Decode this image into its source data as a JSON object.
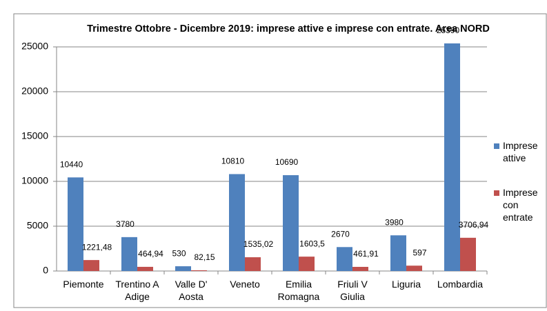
{
  "chart_data": {
    "type": "bar",
    "title": "Trimestre Ottobre - Dicembre 2019: imprese attive e imprese con entrate. Area NORD",
    "categories": [
      "Piemonte",
      "Trentino A Adige",
      "Valle D' Aosta",
      "Veneto",
      "Emilia Romagna",
      "Friuli V Giulia",
      "Liguria",
      "Lombardia"
    ],
    "series": [
      {
        "name": "Imprese attive",
        "color": "#4f81bd",
        "values": [
          10440,
          3780,
          530,
          10810,
          10690,
          2670,
          3980,
          25390
        ]
      },
      {
        "name": "Imprese con entrate",
        "color": "#c0504d",
        "values": [
          1221.48,
          464.94,
          82.15,
          1535.02,
          1603.5,
          461.91,
          597,
          3706.94
        ],
        "value_labels": [
          "1221,48",
          "464,94",
          "82,15",
          "1535,02",
          "1603,5",
          "461,91",
          "597",
          "3706,94"
        ]
      }
    ],
    "ylim": [
      0,
      25000
    ],
    "yticks": [
      0,
      5000,
      10000,
      15000,
      20000,
      25000
    ],
    "grid": true,
    "legend": "right"
  }
}
